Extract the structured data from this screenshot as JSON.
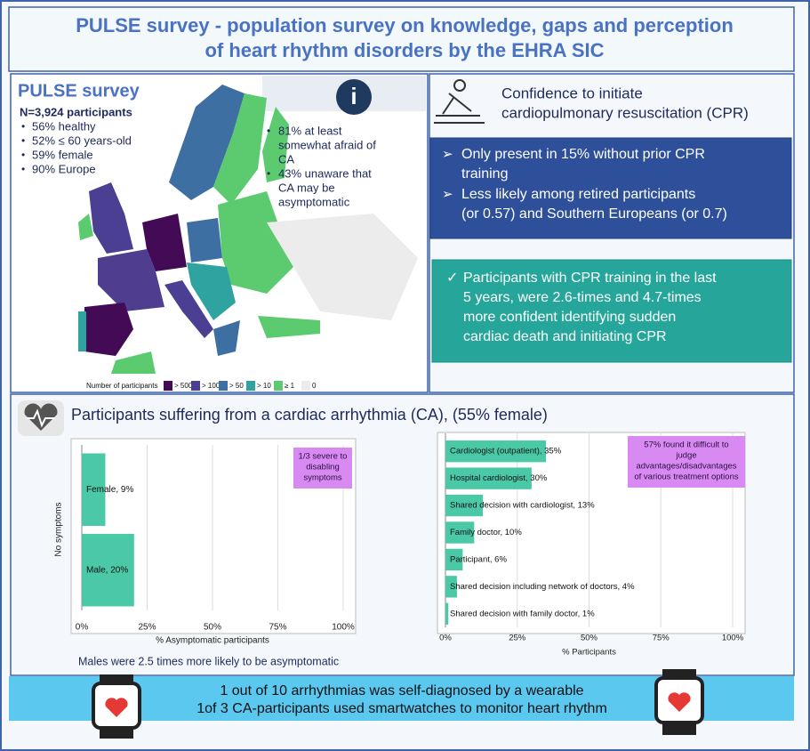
{
  "header": {
    "title_lines": [
      "PULSE survey - population survey on knowledge, gaps and perception",
      "of heart rhythm disorders by the EHRA SIC"
    ]
  },
  "survey": {
    "title": "PULSE survey",
    "participants": "N=3,924 participants",
    "bullets": [
      "56% healthy",
      "52% ≤ 60 years-old",
      "59% female",
      "90% Europe"
    ],
    "facts": [
      [
        "81% at least",
        "somewhat afraid of",
        "CA"
      ],
      [
        "43% unaware that",
        "CA may be",
        "asymptomatic"
      ]
    ],
    "info_icon": "i",
    "legend_title": "Number of participants",
    "legend": [
      {
        "label": "> 500",
        "color": "#430a56"
      },
      {
        "label": "> 100",
        "color": "#4b3f93"
      },
      {
        "label": "> 50",
        "color": "#3d6fa3"
      },
      {
        "label": "> 10",
        "color": "#2fa3a0"
      },
      {
        "label": "≥ 1",
        "color": "#5ccb70"
      },
      {
        "label": "0",
        "color": "#ececec"
      }
    ]
  },
  "cpr": {
    "heading": [
      "Confidence to initiate",
      "cardiopulmonary resuscitation (CPR)"
    ],
    "blue_items": [
      [
        "Only present in 15% without prior CPR",
        "training"
      ],
      [
        "Less likely among retired participants",
        "(or 0.57) and Southern Europeans (or 0.7)"
      ]
    ],
    "teal_item": [
      "Participants with CPR training in the last",
      "5 years, were 2.6-times and 4.7-times",
      "more confident identifying sudden",
      "cardiac death and initiating CPR"
    ]
  },
  "arrhythmia": {
    "heading": "Participants suffering from a cardiac arrhythmia (CA), (55% female)",
    "note": "Males were 2.5 times more likely to be asymptomatic"
  },
  "chart_data": [
    {
      "type": "bar",
      "orientation": "horizontal",
      "y_label": "No symptoms",
      "x_label": "% Asymptomatic participants",
      "values": [
        9,
        20
      ],
      "value_labels": [
        "Female, 9%",
        "Male, 20%"
      ],
      "color": "#4bc8a6",
      "xlim": [
        0,
        100
      ],
      "xticks": [
        {
          "value": 0,
          "label": "0%"
        },
        {
          "value": 25,
          "label": "25%"
        },
        {
          "value": 50,
          "label": "50%"
        },
        {
          "value": 75,
          "label": "75%"
        },
        {
          "value": 100,
          "label": "100%"
        }
      ],
      "grid": true,
      "annotation": [
        "1/3 severe to",
        "disabling",
        "symptoms"
      ]
    },
    {
      "type": "bar",
      "orientation": "horizontal",
      "x_label": "% Participants",
      "values": [
        35,
        30,
        13,
        10,
        6,
        4,
        1
      ],
      "value_labels": [
        "Cardiologist (outpatient), 35%",
        "Hospital cardiologist, 30%",
        "Shared decision with cardiologist, 13%",
        "Family doctor, 10%",
        "Participant, 6%",
        "Shared decision including network of doctors, 4%",
        "Shared decision with family doctor, 1%"
      ],
      "color": "#4bc8a6",
      "xlim": [
        0,
        100
      ],
      "xticks": [
        {
          "value": 0,
          "label": "0%"
        },
        {
          "value": 25,
          "label": "25%"
        },
        {
          "value": 50,
          "label": "50%"
        },
        {
          "value": 75,
          "label": "75%"
        },
        {
          "value": 100,
          "label": "100%"
        }
      ],
      "grid": true,
      "annotation": [
        "57% found it difficult to",
        "judge",
        "advantages/disadvantages",
        "of various treatment options"
      ]
    }
  ],
  "banner": {
    "lines": [
      "1 out of 10 arrhythmias was self-diagnosed by a wearable",
      "1of 3 CA-participants used smartwatches to monitor heart rhythm"
    ]
  }
}
